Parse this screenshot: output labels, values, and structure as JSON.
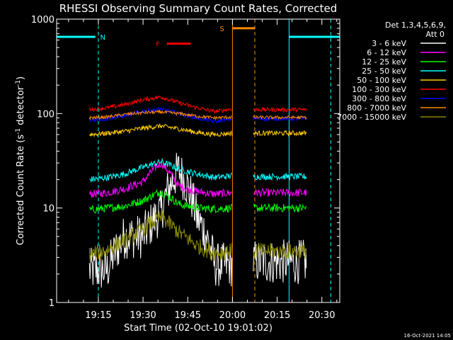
{
  "chart_data": {
    "type": "line",
    "title": "RHESSI Observing Summary Count Rates, Corrected",
    "xlabel": "Start Time (02-Oct-10 19:01:02)",
    "ylabel_main": "Corrected Count Rate (s",
    "ylabel_sup1": "-1",
    "ylabel_mid": " detector",
    "ylabel_sup2": "-1",
    "ylabel_end": ")",
    "yscale": "log",
    "ylim": [
      1,
      1000
    ],
    "xlim_minutes": [
      0,
      95
    ],
    "x_ticks": [
      {
        "minute": 14,
        "label": "19:15"
      },
      {
        "minute": 29,
        "label": "19:30"
      },
      {
        "minute": 44,
        "label": "19:45"
      },
      {
        "minute": 59,
        "label": "20:00"
      },
      {
        "minute": 74,
        "label": "20:15"
      },
      {
        "minute": 89,
        "label": "20:30"
      }
    ],
    "y_ticks": [
      {
        "value": 1,
        "label": "1"
      },
      {
        "value": 10,
        "label": "10"
      },
      {
        "value": 100,
        "label": "100"
      },
      {
        "value": 1000,
        "label": "1000"
      }
    ],
    "legend": {
      "header1": "Det 1,3,4,5,6,9,",
      "header2": "Att 0",
      "position": "top-right"
    },
    "series": [
      {
        "name": "3 - 6 keV",
        "color": "#ffffff",
        "base": [
          2.2,
          2.2,
          5,
          5,
          9,
          25,
          8,
          2.5,
          2.5
        ],
        "noise": 0.55
      },
      {
        "name": "6 - 12 keV",
        "color": "#ff00ff",
        "base": [
          14,
          14.5,
          16,
          19,
          30,
          17,
          15,
          14,
          14.5
        ],
        "noise": 0.1
      },
      {
        "name": "12 - 25 keV",
        "color": "#00ff00",
        "base": [
          9.5,
          10,
          10.5,
          12,
          15,
          11,
          10,
          9.8,
          10
        ],
        "noise": 0.1
      },
      {
        "name": "25 - 50 keV",
        "color": "#00ffff",
        "base": [
          20,
          21,
          23,
          27,
          31,
          26,
          23,
          21,
          22
        ],
        "noise": 0.08
      },
      {
        "name": "50 - 100 keV",
        "color": "#ffcc00",
        "base": [
          60,
          62,
          65,
          70,
          74,
          69,
          63,
          60,
          62
        ],
        "noise": 0.06
      },
      {
        "name": "100 - 300 keV",
        "color": "#ff0000",
        "base": [
          110,
          115,
          125,
          140,
          150,
          130,
          115,
          105,
          112
        ],
        "noise": 0.05
      },
      {
        "name": "300 - 800 keV",
        "color": "#0000ff",
        "base": [
          85,
          88,
          95,
          105,
          112,
          100,
          90,
          82,
          88
        ],
        "noise": 0.05
      },
      {
        "name": "800 - 7000 keV",
        "color": "#ff8800",
        "base": [
          90,
          92,
          98,
          102,
          104,
          100,
          94,
          90,
          92
        ],
        "noise": 0.04
      },
      {
        "name": "7000 - 15000 keV",
        "color": "#888800",
        "base": [
          3.2,
          3.6,
          4.5,
          6,
          8,
          5.5,
          4,
          3.3,
          3.5
        ],
        "noise": 0.2
      }
    ],
    "data_segments_minutes": [
      [
        11,
        59
      ],
      [
        66,
        84
      ]
    ],
    "second_segment_levels": {
      "3 - 6 keV": 2.7,
      "6 - 12 keV": 14.5,
      "12 - 25 keV": 10,
      "25 - 50 keV": 21.5,
      "50 - 100 keV": 62,
      "100 - 300 keV": 110,
      "300 - 800 keV": 88,
      "800 - 7000 keV": 91,
      "7000 - 15000 keV": 3.5
    },
    "flags": [
      {
        "label": "N",
        "color": "#00ffff",
        "level": 650,
        "ranges": [
          [
            0,
            13
          ],
          [
            78,
            95
          ]
        ],
        "solid_markers": [
          0,
          78
        ],
        "dashed_markers": [
          14,
          92
        ],
        "label_minute": 15.5
      },
      {
        "label": "S",
        "color": "#ff8800",
        "level": 800,
        "ranges": [
          [
            59,
            66.5
          ]
        ],
        "solid_markers": [
          59
        ],
        "dashed_markers": [
          66.5
        ],
        "label_minute": 55.5
      },
      {
        "label": "F",
        "color": "#ff0000",
        "level": 550,
        "ranges": [
          [
            37,
            45
          ]
        ],
        "solid_markers": [],
        "dashed_markers": [],
        "label_minute": 34
      }
    ],
    "footer_date": "16-Oct-2021 14:05"
  }
}
